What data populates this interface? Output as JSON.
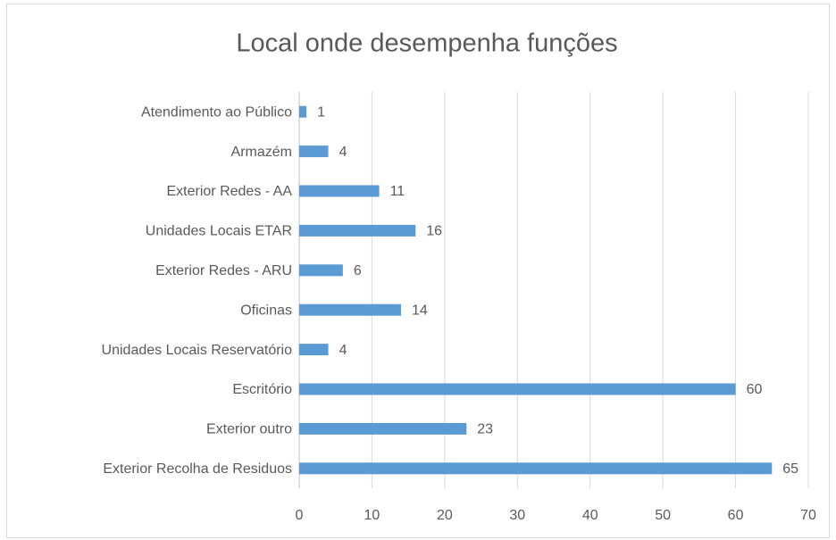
{
  "chart_data": {
    "type": "bar",
    "orientation": "horizontal",
    "title": "Local onde desempenha funções",
    "categories": [
      "Atendimento ao Público",
      "Armazém",
      "Exterior Redes - AA",
      "Unidades Locais ETAR",
      "Exterior Redes - ARU",
      "Oficinas",
      "Unidades Locais Reservatório",
      "Escritório",
      "Exterior outro",
      "Exterior Recolha de Residuos"
    ],
    "values": [
      1,
      4,
      11,
      16,
      6,
      14,
      4,
      60,
      23,
      65
    ],
    "color": "#5b9bd5",
    "xlim": [
      0,
      70
    ],
    "xticks": [
      0,
      10,
      20,
      30,
      40,
      50,
      60,
      70
    ],
    "grid": true
  }
}
